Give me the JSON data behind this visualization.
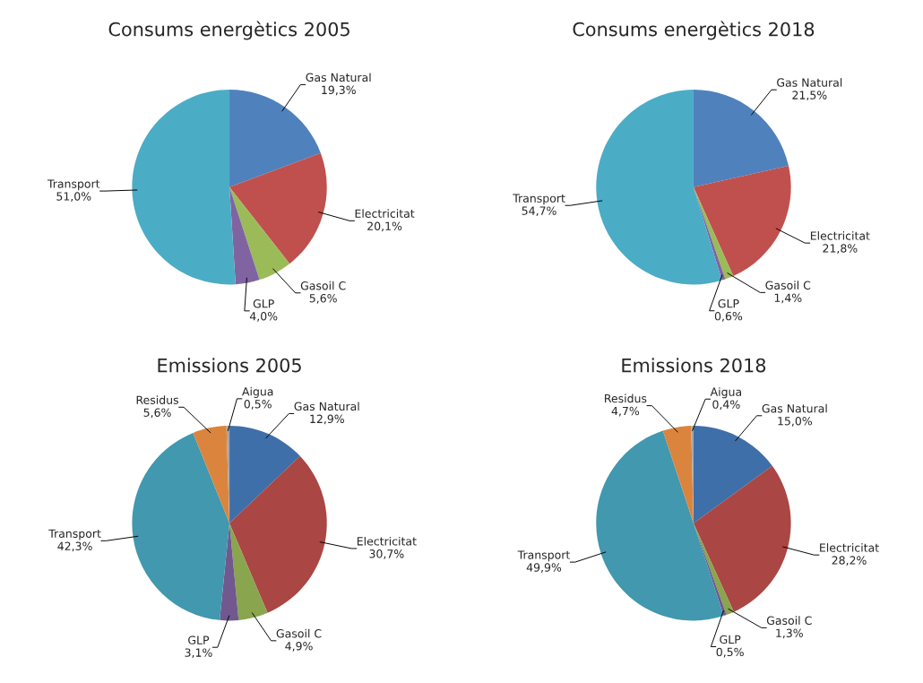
{
  "chart_data": [
    {
      "type": "pie",
      "title": "Consums energètics 2005",
      "categories": [
        "Gas Natural",
        "Electricitat",
        "Gasoil C",
        "GLP",
        "Transport"
      ],
      "values": [
        19.3,
        20.1,
        5.6,
        4.0,
        51.0
      ],
      "value_labels": [
        "19,3%",
        "20,1%",
        "5,6%",
        "4,0%",
        "51,0%"
      ],
      "colors": [
        "#4f81bd",
        "#c0504d",
        "#9bbb59",
        "#8064a2",
        "#4bacc6"
      ]
    },
    {
      "type": "pie",
      "title": "Consums energètics 2018",
      "categories": [
        "Gas Natural",
        "Electricitat",
        "Gasoil C",
        "GLP",
        "Transport"
      ],
      "values": [
        21.5,
        21.8,
        1.4,
        0.6,
        54.7
      ],
      "value_labels": [
        "21,5%",
        "21,8%",
        "1,4%",
        "0,6%",
        "54,7%"
      ],
      "colors": [
        "#4f81bd",
        "#c0504d",
        "#9bbb59",
        "#8064a2",
        "#4bacc6"
      ]
    },
    {
      "type": "pie",
      "title": "Emissions 2005",
      "categories": [
        "Gas Natural",
        "Electricitat",
        "Gasoil C",
        "GLP",
        "Transport",
        "Residus",
        "Aigua"
      ],
      "values": [
        12.9,
        30.7,
        4.9,
        3.1,
        42.3,
        5.6,
        0.5
      ],
      "value_labels": [
        "12,9%",
        "30,7%",
        "4,9%",
        "3,1%",
        "42,3%",
        "5,6%",
        "0,5%"
      ],
      "colors": [
        "#3f6fa8",
        "#aa4643",
        "#89a54e",
        "#71588f",
        "#4198af",
        "#db843d",
        "#a6a6a6"
      ]
    },
    {
      "type": "pie",
      "title": "Emissions 2018",
      "categories": [
        "Gas Natural",
        "Electricitat",
        "Gasoil C",
        "GLP",
        "Transport",
        "Residus",
        "Aigua"
      ],
      "values": [
        15.0,
        28.2,
        1.3,
        0.5,
        49.9,
        4.7,
        0.4
      ],
      "value_labels": [
        "15,0%",
        "28,2%",
        "1,3%",
        "0,5%",
        "49,9%",
        "4,7%",
        "0,4%"
      ],
      "colors": [
        "#3f6fa8",
        "#aa4643",
        "#89a54e",
        "#71588f",
        "#4198af",
        "#db843d",
        "#a6a6a6"
      ]
    }
  ]
}
